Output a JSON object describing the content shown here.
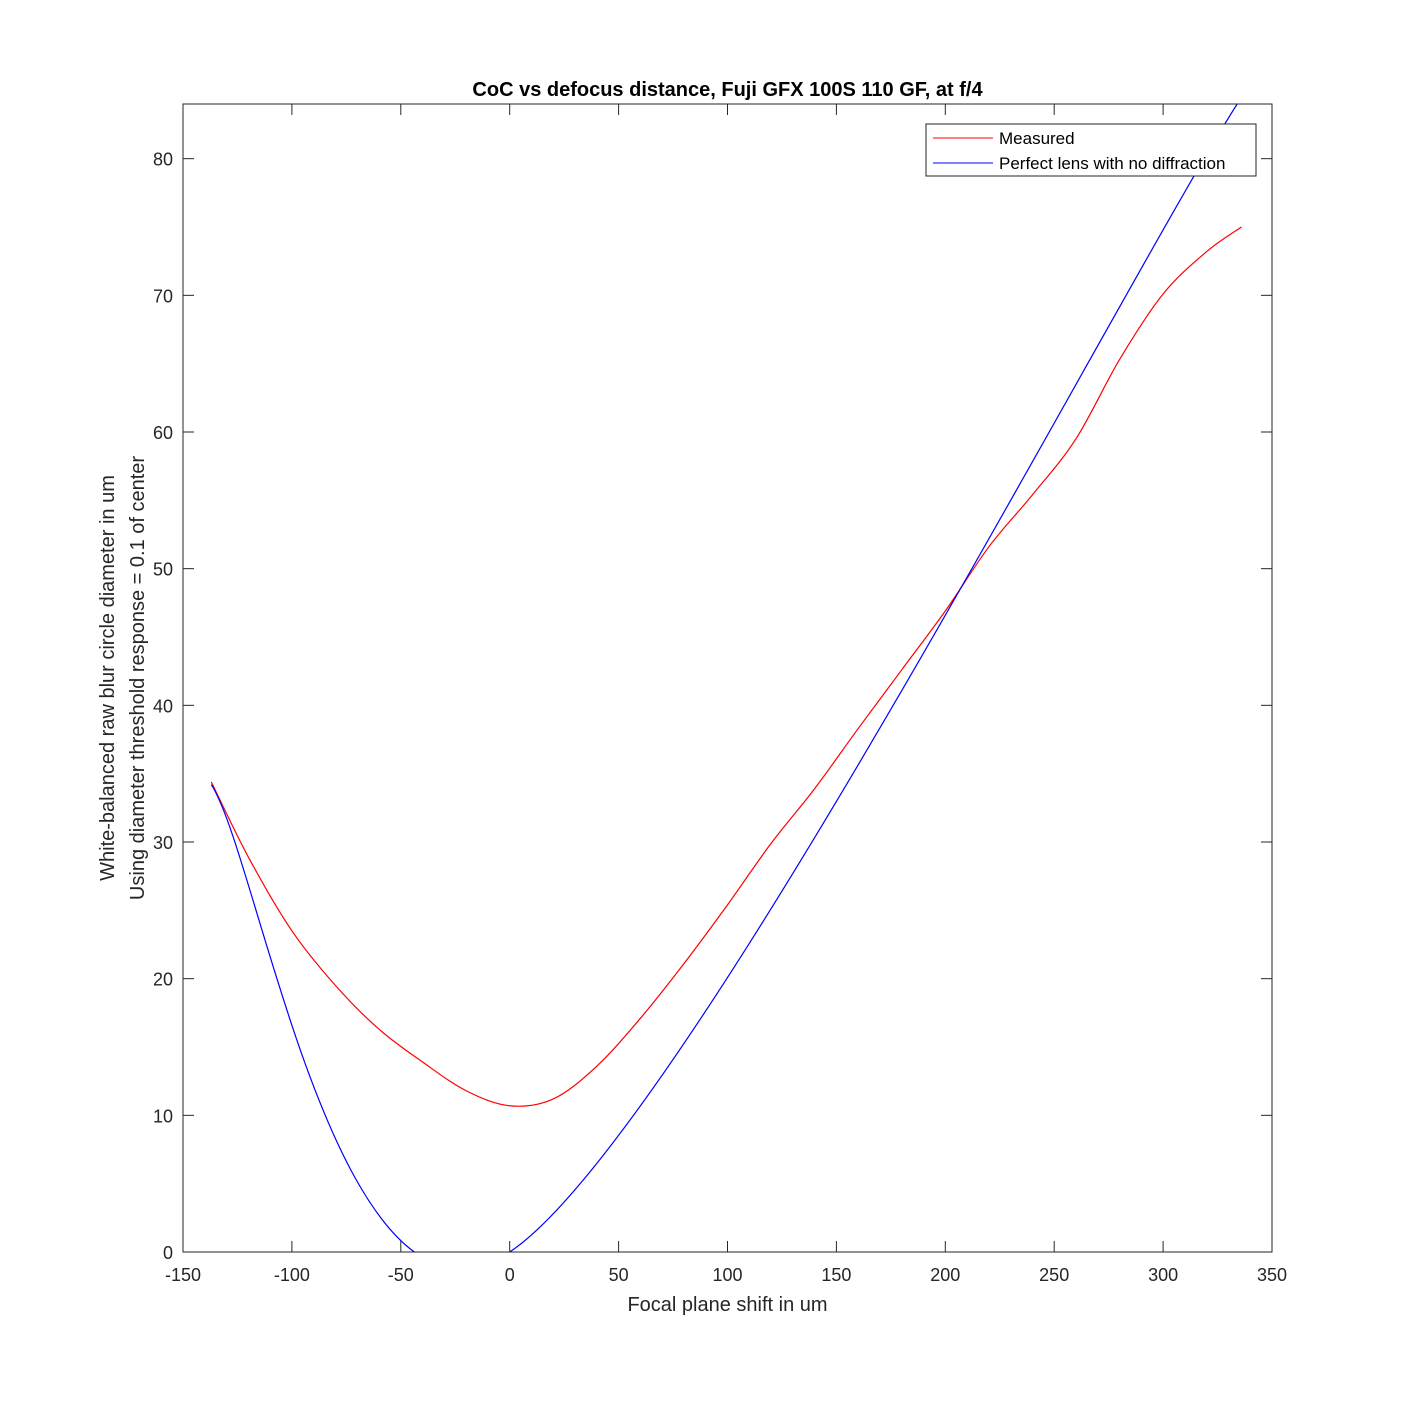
{
  "chart_data": {
    "type": "line",
    "title": "CoC vs defocus distance, Fuji GFX 100S 110 GF, at f/4",
    "xlabel": "Focal plane shift in um",
    "ylabel": [
      "White-balanced raw blur circle diameter in um",
      "Using diameter threshold response = 0.1 of center"
    ],
    "xlim": [
      -150,
      350
    ],
    "ylim": [
      0,
      84
    ],
    "xticks": [
      -150,
      -100,
      -50,
      0,
      50,
      100,
      150,
      200,
      250,
      300,
      350
    ],
    "yticks": [
      0,
      10,
      20,
      30,
      40,
      50,
      60,
      70,
      80
    ],
    "grid": false,
    "legend_position": "top-right",
    "series": [
      {
        "name": "Measured",
        "color": "#ff0000",
        "x": [
          -137,
          -120,
          -100,
          -80,
          -60,
          -40,
          -20,
          0,
          20,
          40,
          60,
          80,
          100,
          120,
          140,
          160,
          180,
          200,
          220,
          240,
          260,
          280,
          300,
          320,
          336
        ],
        "y": [
          34.4,
          28.9,
          23.5,
          19.5,
          16.3,
          13.9,
          11.8,
          10.7,
          11.2,
          13.6,
          17.1,
          21.1,
          25.4,
          29.9,
          33.9,
          38.3,
          42.6,
          46.9,
          51.6,
          55.4,
          59.5,
          65.3,
          70.1,
          73.2,
          75.0
        ]
      },
      {
        "name": "Perfect lens with no diffraction",
        "color": "#0000ff",
        "x": [
          -137,
          0,
          334
        ],
        "y": [
          34.2,
          0,
          84
        ]
      }
    ]
  }
}
